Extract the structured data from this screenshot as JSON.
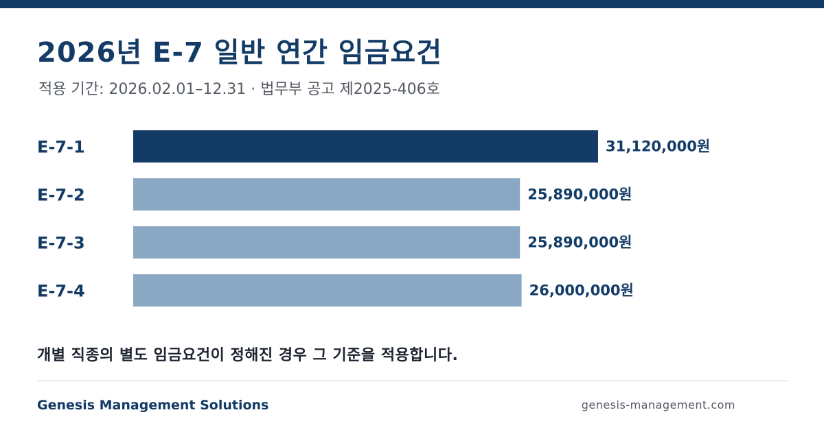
{
  "header": {
    "title": "2026년 E-7 일반 연간 임금요건",
    "subtitle": "적용 기간: 2026.02.01–12.31 · 법무부 공고 제2025-406호"
  },
  "chart_data": {
    "type": "bar",
    "orientation": "horizontal",
    "categories": [
      "E-7-1",
      "E-7-2",
      "E-7-3",
      "E-7-4"
    ],
    "values": [
      31120000,
      25890000,
      25890000,
      26000000
    ],
    "value_labels": [
      "31,120,000원",
      "25,890,000원",
      "25,890,000원",
      "26,000,000원"
    ],
    "unit": "원",
    "colors": [
      "#133b66",
      "#8aa8c3",
      "#8aa8c3",
      "#8aa8c3"
    ],
    "grid": false,
    "legend": "none"
  },
  "note": "개별 직종의 별도 임금요건이 정해진 경우 그 기준을 적용합니다.",
  "footer": {
    "brand": "Genesis Management Solutions",
    "domain": "genesis-management.com"
  }
}
